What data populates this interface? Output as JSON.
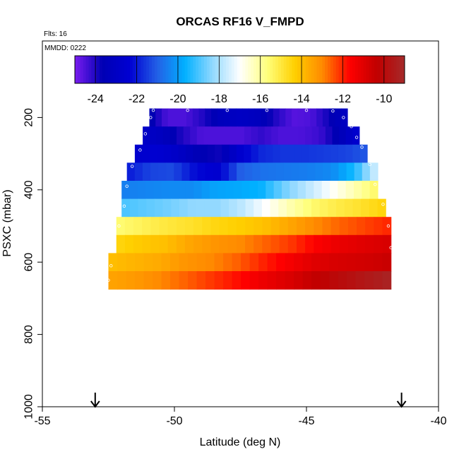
{
  "chart_data": {
    "type": "heatmap",
    "title": "ORCAS RF16 V_FMPD",
    "subtitle": "Flts: 16",
    "annotation": "MMDD: 0222",
    "xlabel": "Latitude (deg N)",
    "ylabel": "PSXC (mbar)",
    "xlim": [
      -55,
      -40
    ],
    "ylim": [
      1000,
      0
    ],
    "x_ticks": [
      -55,
      -50,
      -45,
      -40
    ],
    "y_ticks": [
      200,
      400,
      600,
      800,
      1000
    ],
    "colorbar": {
      "min": -25,
      "max": -9,
      "ticks": [
        -24,
        -22,
        -20,
        -18,
        -16,
        -14,
        -12,
        -10
      ],
      "colors": [
        "#7a1cf0",
        "#0000b4",
        "#0000d2",
        "#2360e6",
        "#00b0ff",
        "#90d8ff",
        "#ffffff",
        "#ffff7c",
        "#ffd000",
        "#ff8a00",
        "#ff0000",
        "#c00000",
        "#a52a2a"
      ]
    },
    "pressure_bands": [
      {
        "p_top": 175,
        "p_bottom": 225,
        "lat_start": -50.95,
        "lat_end": -43.45,
        "values": [
          -23.5,
          -24.5,
          -24.5,
          -24.0,
          -23.3,
          -23.0,
          -23.2,
          -24.0,
          -24.6,
          -24.5,
          -23.8,
          -23.0
        ]
      },
      {
        "p_top": 225,
        "p_bottom": 275,
        "lat_start": -51.2,
        "lat_end": -43.0,
        "values": [
          -22.8,
          -23.2,
          -24.0,
          -24.5,
          -24.5,
          -24.5,
          -24.2,
          -24.5,
          -24.5,
          -24.3,
          -23.5,
          -22.4
        ]
      },
      {
        "p_top": 275,
        "p_bottom": 325,
        "lat_start": -51.5,
        "lat_end": -42.7,
        "values": [
          -22.6,
          -22.4,
          -22.8,
          -23.6,
          -23.8,
          -22.5,
          -21.8,
          -21.6,
          -21.6,
          -21.5,
          -21.4,
          -21.1
        ]
      },
      {
        "p_top": 325,
        "p_bottom": 375,
        "lat_start": -51.8,
        "lat_end": -42.3,
        "values": [
          -22.0,
          -21.4,
          -21.3,
          -22.2,
          -22.5,
          -21.0,
          -20.7,
          -20.6,
          -20.5,
          -20.3,
          -19.4,
          -17.4
        ]
      },
      {
        "p_top": 375,
        "p_bottom": 425,
        "lat_start": -52.0,
        "lat_end": -42.3,
        "values": [
          -20.5,
          -20.4,
          -20.3,
          -20.3,
          -19.9,
          -19.8,
          -19.6,
          -18.6,
          -17.8,
          -17.0,
          -16.2,
          -15.4
        ]
      },
      {
        "p_top": 425,
        "p_bottom": 475,
        "lat_start": -52.0,
        "lat_end": -42.0,
        "values": [
          -19.0,
          -18.8,
          -18.6,
          -18.3,
          -18.3,
          -17.8,
          -17.0,
          -16.2,
          -15.5,
          -15.1,
          -14.8,
          -14.4
        ]
      },
      {
        "p_top": 475,
        "p_bottom": 525,
        "lat_start": -52.2,
        "lat_end": -41.8,
        "values": [
          -15.6,
          -15.3,
          -15.0,
          -14.8,
          -14.5,
          -14.3,
          -14.0,
          -13.5,
          -13.0,
          -12.6,
          -12.3,
          -12.0
        ]
      },
      {
        "p_top": 525,
        "p_bottom": 575,
        "lat_start": -52.2,
        "lat_end": -41.8,
        "values": [
          -14.5,
          -14.2,
          -14.0,
          -13.5,
          -13.2,
          -13.0,
          -12.6,
          -12.2,
          -11.6,
          -11.2,
          -11.0,
          -10.8
        ]
      },
      {
        "p_top": 575,
        "p_bottom": 625,
        "lat_start": -52.5,
        "lat_end": -41.8,
        "values": [
          -14.0,
          -13.8,
          -13.6,
          -13.2,
          -13.0,
          -12.6,
          -12.0,
          -11.5,
          -11.0,
          -10.8,
          -10.7,
          -10.5
        ]
      },
      {
        "p_top": 625,
        "p_bottom": 675,
        "lat_start": -52.5,
        "lat_end": -41.8,
        "values": [
          -13.5,
          -13.3,
          -13.0,
          -12.6,
          -12.2,
          -11.8,
          -11.3,
          -10.9,
          -10.4,
          -10.0,
          -9.6,
          -9.2
        ]
      }
    ],
    "flight_track": [
      [
        -50.8,
        180
      ],
      [
        -49.5,
        180
      ],
      [
        -48.0,
        180
      ],
      [
        -46.5,
        180
      ],
      [
        -45.0,
        180
      ],
      [
        -44.0,
        182
      ],
      [
        -43.6,
        200
      ],
      [
        -43.3,
        225
      ],
      [
        -43.1,
        255
      ],
      [
        -42.9,
        282
      ],
      [
        -42.6,
        330
      ],
      [
        -42.4,
        385
      ],
      [
        -42.1,
        440
      ],
      [
        -41.9,
        500
      ],
      [
        -41.8,
        560
      ],
      [
        -41.6,
        620
      ],
      [
        -50.9,
        200
      ],
      [
        -51.1,
        245
      ],
      [
        -51.3,
        290
      ],
      [
        -51.6,
        335
      ],
      [
        -51.8,
        390
      ],
      [
        -51.9,
        445
      ],
      [
        -52.1,
        500
      ],
      [
        -52.3,
        570
      ],
      [
        -52.4,
        610
      ],
      [
        -52.5,
        650
      ]
    ],
    "arrows_lat": [
      -53.0,
      -41.4
    ]
  }
}
